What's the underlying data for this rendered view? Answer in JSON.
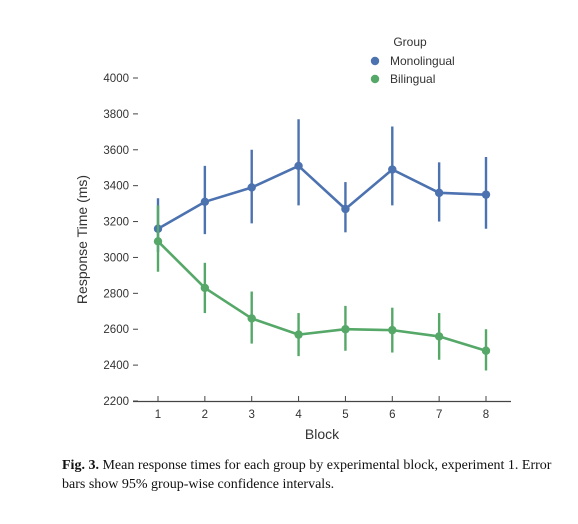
{
  "chart_data": {
    "type": "line",
    "x": [
      1,
      2,
      3,
      4,
      5,
      6,
      7,
      8
    ],
    "xlabel": "Block",
    "ylabel": "Response Time (ms)",
    "ylim": [
      2200,
      4000
    ],
    "yticks": [
      2200,
      2400,
      2600,
      2800,
      3000,
      3200,
      3400,
      3600,
      3800,
      4000
    ],
    "grid": false,
    "legend_title": "Group",
    "legend_position": "top-right",
    "series": [
      {
        "name": "Monolingual",
        "color": "#4c72b0",
        "values": [
          3160,
          3310,
          3390,
          3510,
          3270,
          3490,
          3360,
          3350
        ],
        "ci_low": [
          3030,
          3130,
          3190,
          3290,
          3140,
          3290,
          3200,
          3160
        ],
        "ci_high": [
          3330,
          3510,
          3600,
          3770,
          3420,
          3730,
          3530,
          3560
        ]
      },
      {
        "name": "Bilingual",
        "color": "#55a868",
        "values": [
          3090,
          2830,
          2660,
          2570,
          2600,
          2595,
          2560,
          2480
        ],
        "ci_low": [
          2920,
          2690,
          2520,
          2450,
          2480,
          2470,
          2430,
          2370
        ],
        "ci_high": [
          3290,
          2970,
          2810,
          2690,
          2730,
          2720,
          2690,
          2600
        ]
      }
    ]
  },
  "caption": {
    "label": "Fig. 3.",
    "text": " Mean response times for each group by experimental block, experiment 1. Error bars show 95% group-wise confidence intervals."
  }
}
